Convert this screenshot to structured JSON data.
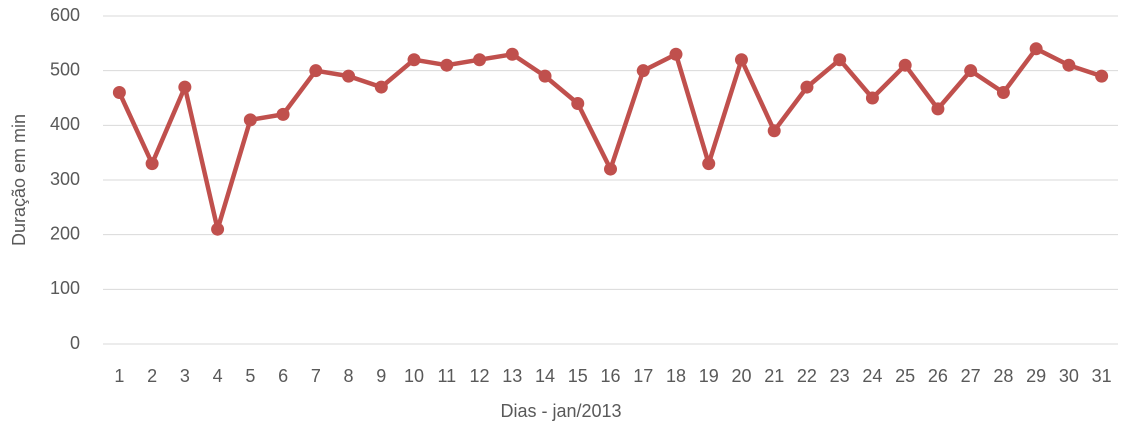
{
  "chart_data": {
    "type": "line",
    "x_label": "Dias - jan/2013",
    "y_label": "Duração em min",
    "categories": [
      "1",
      "2",
      "3",
      "4",
      "5",
      "6",
      "7",
      "8",
      "9",
      "10",
      "11",
      "12",
      "13",
      "14",
      "15",
      "16",
      "17",
      "18",
      "19",
      "20",
      "21",
      "22",
      "23",
      "24",
      "25",
      "26",
      "27",
      "28",
      "29",
      "30",
      "31"
    ],
    "series": [
      {
        "color": "#c0504d",
        "values": [
          460,
          330,
          470,
          210,
          410,
          420,
          500,
          490,
          470,
          520,
          510,
          520,
          530,
          490,
          440,
          320,
          500,
          530,
          330,
          520,
          390,
          470,
          520,
          450,
          510,
          430,
          500,
          460,
          540,
          510,
          490
        ]
      }
    ],
    "ylim": [
      0,
      600
    ],
    "yticks": [
      0,
      100,
      200,
      300,
      400,
      500,
      600
    ],
    "grid": true
  }
}
